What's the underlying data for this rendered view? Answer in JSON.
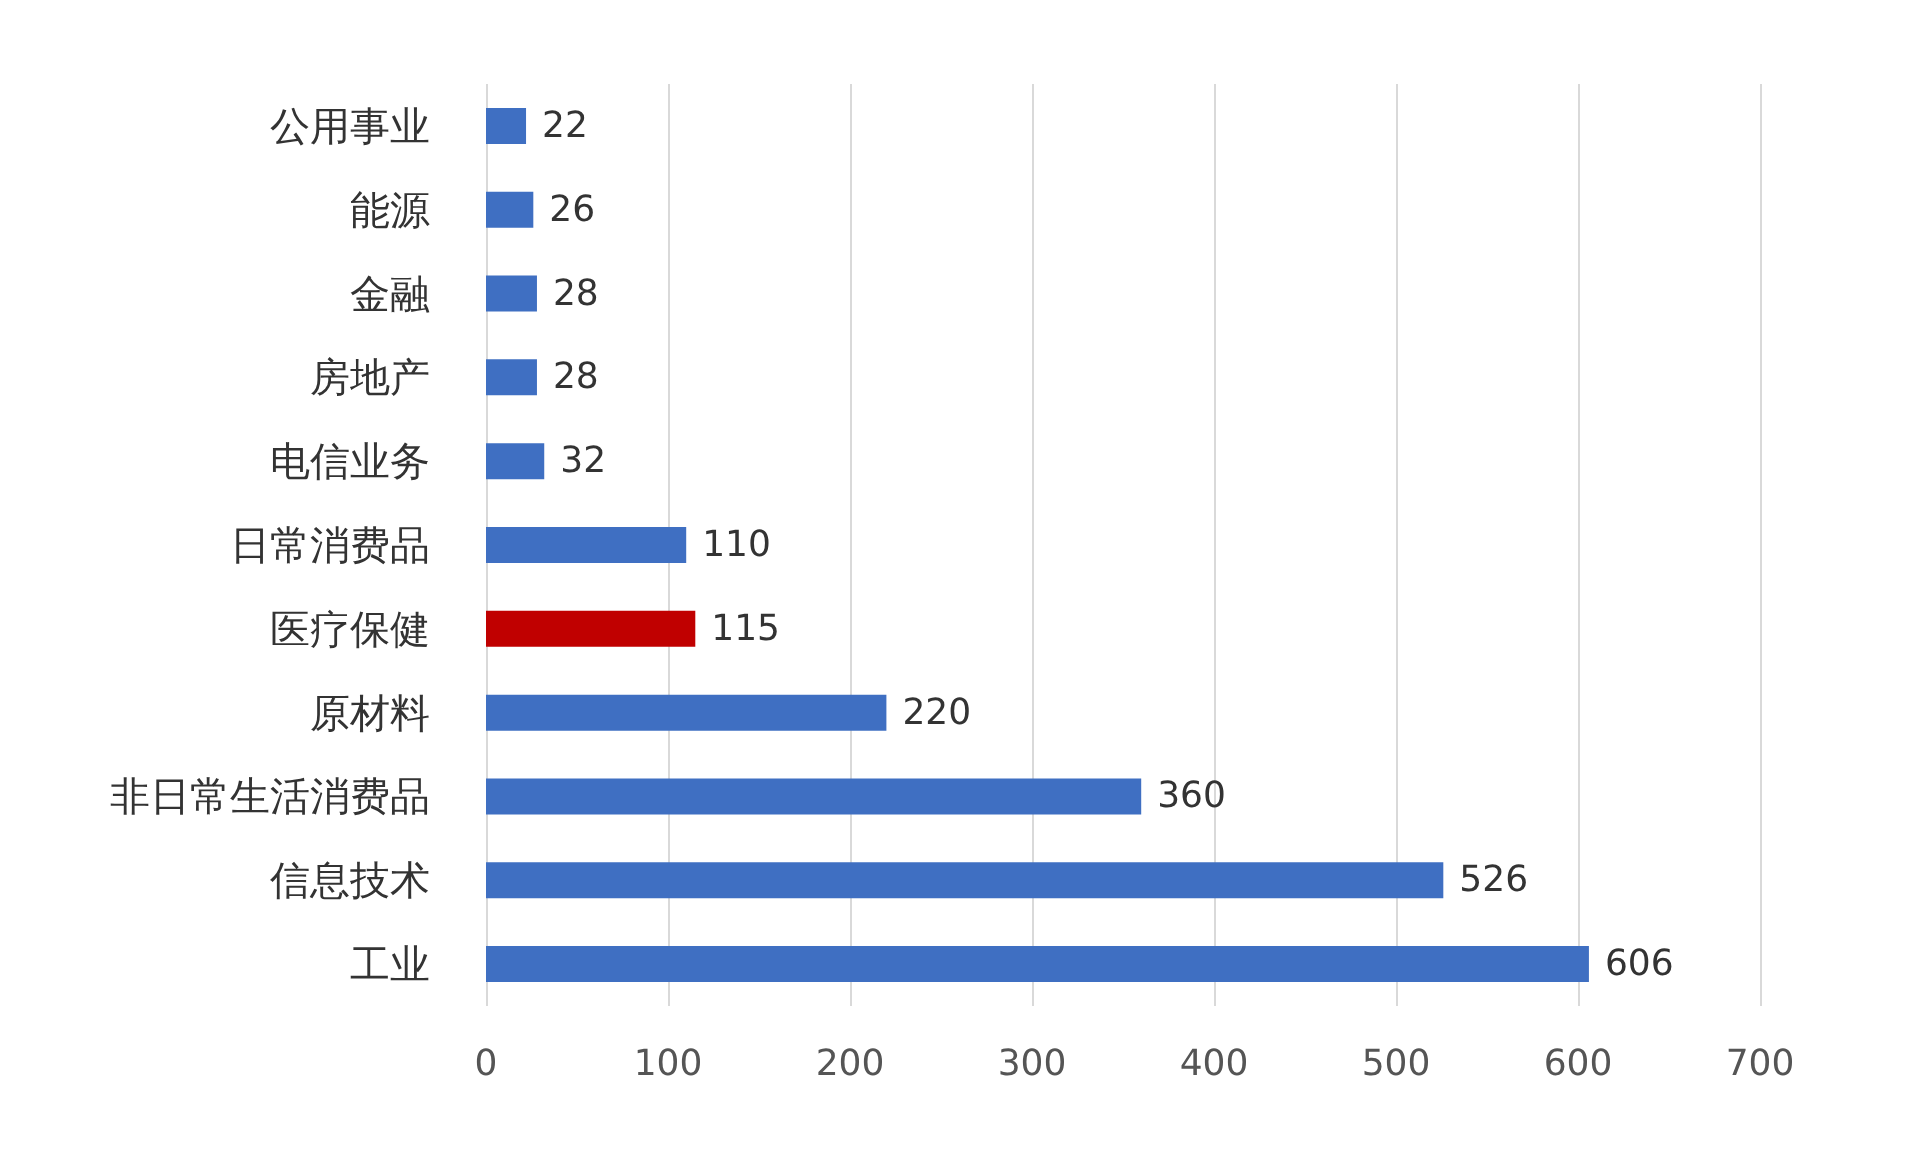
{
  "chart_data": {
    "type": "bar",
    "orientation": "horizontal",
    "categories": [
      "公用事业",
      "能源",
      "金融",
      "房地产",
      "电信业务",
      "日常消费品",
      "医疗保健",
      "原材料",
      "非日常生活消费品",
      "信息技术",
      "工业"
    ],
    "values": [
      22,
      26,
      28,
      28,
      32,
      110,
      115,
      220,
      360,
      526,
      606
    ],
    "colors": [
      "#3f6fc2",
      "#3f6fc2",
      "#3f6fc2",
      "#3f6fc2",
      "#3f6fc2",
      "#3f6fc2",
      "#c00000",
      "#3f6fc2",
      "#3f6fc2",
      "#3f6fc2",
      "#3f6fc2"
    ],
    "xlim": [
      0,
      700
    ],
    "xticks": [
      0,
      100,
      200,
      300,
      400,
      500,
      600,
      700
    ],
    "grid": "x",
    "data_labels": true
  }
}
